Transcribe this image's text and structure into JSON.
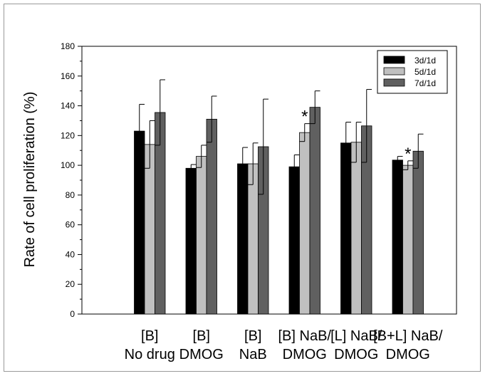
{
  "chart_data": {
    "type": "bar",
    "ylabel": "Rate of cell proliferation (%)",
    "ylim": [
      0,
      180
    ],
    "yticks": [
      0,
      20,
      40,
      60,
      80,
      100,
      120,
      140,
      160,
      180
    ],
    "grid": false,
    "legend_position": "top-right",
    "categories": [
      [
        "[B]",
        "No drug"
      ],
      [
        "[B]",
        "DMOG"
      ],
      [
        "[B]",
        "NaB"
      ],
      [
        "[B] NaB/",
        "DMOG"
      ],
      [
        "[L] NaB/",
        "DMOG"
      ],
      [
        "[B+L] NaB/",
        "DMOG"
      ]
    ],
    "series": [
      {
        "name": "3d/1d",
        "color": "#000000",
        "values": [
          123,
          98,
          101,
          99,
          115,
          103.5
        ],
        "errors": [
          18,
          2.5,
          11,
          8,
          14,
          2.5
        ]
      },
      {
        "name": "5d/1d",
        "color": "#c0c0c0",
        "values": [
          114,
          106,
          101,
          122,
          115.5,
          100
        ],
        "errors": [
          16,
          7.5,
          14,
          6,
          13.5,
          3
        ]
      },
      {
        "name": "7d/1d",
        "color": "#606060",
        "values": [
          135.5,
          131,
          112.5,
          139,
          126.5,
          109.5
        ],
        "errors": [
          22,
          15.5,
          32,
          11,
          24.5,
          11.5
        ]
      }
    ],
    "annotations": [
      {
        "text": "*",
        "category_index": 3,
        "series_index": 1
      },
      {
        "text": "*",
        "category_index": 5,
        "series_index": 1
      }
    ]
  }
}
